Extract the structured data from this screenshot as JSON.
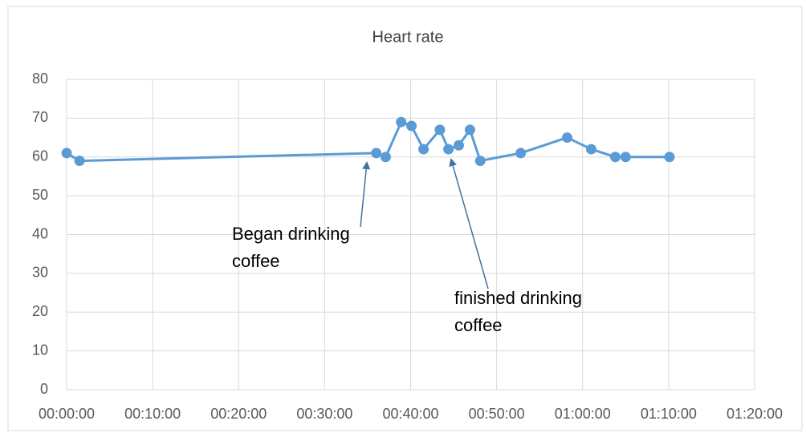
{
  "chart_data": {
    "type": "line",
    "title": "Heart rate",
    "x": [
      0,
      1.5,
      36.0,
      37.1,
      38.9,
      40.1,
      41.5,
      43.4,
      44.4,
      45.6,
      46.9,
      48.1,
      52.8,
      58.2,
      61.0,
      63.8,
      65.0,
      70.1
    ],
    "series": [
      {
        "name": "Heart rate",
        "color": "#5b9bd5",
        "values": [
          61,
          59,
          61,
          60,
          69,
          68,
          62,
          67,
          62,
          63,
          67,
          59,
          61,
          65,
          62,
          60,
          60,
          60
        ]
      }
    ],
    "xlim": [
      0,
      80
    ],
    "xticks": [
      {
        "value": 0,
        "label": "00:00:00"
      },
      {
        "value": 10,
        "label": "00:10:00"
      },
      {
        "value": 20,
        "label": "00:20:00"
      },
      {
        "value": 30,
        "label": "00:30:00"
      },
      {
        "value": 40,
        "label": "00:40:00"
      },
      {
        "value": 50,
        "label": "00:50:00"
      },
      {
        "value": 60,
        "label": "01:00:00"
      },
      {
        "value": 70,
        "label": "01:10:00"
      },
      {
        "value": 80,
        "label": "01:20:00"
      }
    ],
    "ylim": [
      0,
      80
    ],
    "yticks": [
      0,
      10,
      20,
      30,
      40,
      50,
      60,
      70,
      80
    ],
    "grid": true,
    "annotations": [
      {
        "text": "Began drinking coffee"
      },
      {
        "text": "finished drinking coffee"
      }
    ]
  }
}
